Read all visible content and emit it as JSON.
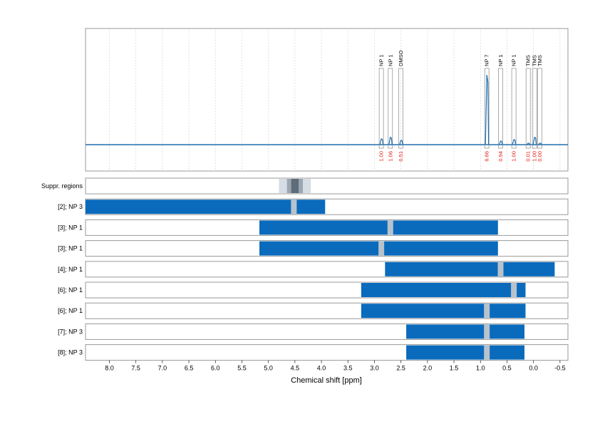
{
  "chart_data": {
    "type": "line",
    "xlabel": "Chemical shift [ppm]",
    "xlim": [
      8.45,
      -0.65
    ],
    "xticks": [
      "8.0",
      "7.5",
      "7.0",
      "6.5",
      "6.0",
      "5.5",
      "5.0",
      "4.5",
      "4.0",
      "3.5",
      "3.0",
      "2.5",
      "2.0",
      "1.5",
      "1.0",
      "0.5",
      "0.0",
      "-0.5"
    ],
    "grid": true,
    "colors": {
      "signal": "#1f6fb0",
      "range": "#0a6bbd",
      "marker": "#b8c2cc",
      "integral": "#e8201a",
      "frame": "#999999"
    },
    "peaks": [
      {
        "label": "NP 1",
        "ppm": 2.87,
        "integral": "1.00",
        "height": 0.08
      },
      {
        "label": "NP 1",
        "ppm": 2.7,
        "integral": "1.06",
        "height": 0.1
      },
      {
        "label": "DMSO",
        "ppm": 2.5,
        "integral": "0.51",
        "height": 0.06
      },
      {
        "label": "NP 7",
        "ppm": 0.88,
        "integral": "6.66",
        "height": 0.95
      },
      {
        "label": "NP 1",
        "ppm": 0.62,
        "integral": "0.94",
        "height": 0.05
      },
      {
        "label": "NP 1",
        "ppm": 0.37,
        "integral": "1.00",
        "height": 0.07
      },
      {
        "label": "TMS",
        "ppm": 0.1,
        "integral": "0.01",
        "height": 0.02
      },
      {
        "label": "TMS",
        "ppm": -0.02,
        "integral": "1.00",
        "height": 0.1
      },
      {
        "label": "TMS",
        "ppm": -0.12,
        "integral": "0.00",
        "height": 0.02
      }
    ],
    "suppression": {
      "label": "Suppr. regions",
      "outer": [
        4.65,
        4.35
      ],
      "mid": [
        4.8,
        4.2
      ]
    },
    "rows": [
      {
        "label": "[2]; NP 3",
        "start": 8.45,
        "end": 3.93,
        "marker": 4.52
      },
      {
        "label": "[3]; NP 1",
        "start": 5.17,
        "end": 0.67,
        "marker": 2.7
      },
      {
        "label": "[3]; NP 1",
        "start": 5.17,
        "end": 0.67,
        "marker": 2.87
      },
      {
        "label": "[4]; NP 1",
        "start": 2.8,
        "end": -0.4,
        "marker": 0.62
      },
      {
        "label": "[6]; NP 1",
        "start": 3.25,
        "end": 0.15,
        "marker": 0.37
      },
      {
        "label": "[6]; NP 1",
        "start": 3.25,
        "end": 0.15,
        "marker": 0.88
      },
      {
        "label": "[7]; NP 3",
        "start": 2.4,
        "end": 0.17,
        "marker": 0.88
      },
      {
        "label": "[8]; NP 3",
        "start": 2.4,
        "end": 0.17,
        "marker": 0.88
      }
    ]
  }
}
